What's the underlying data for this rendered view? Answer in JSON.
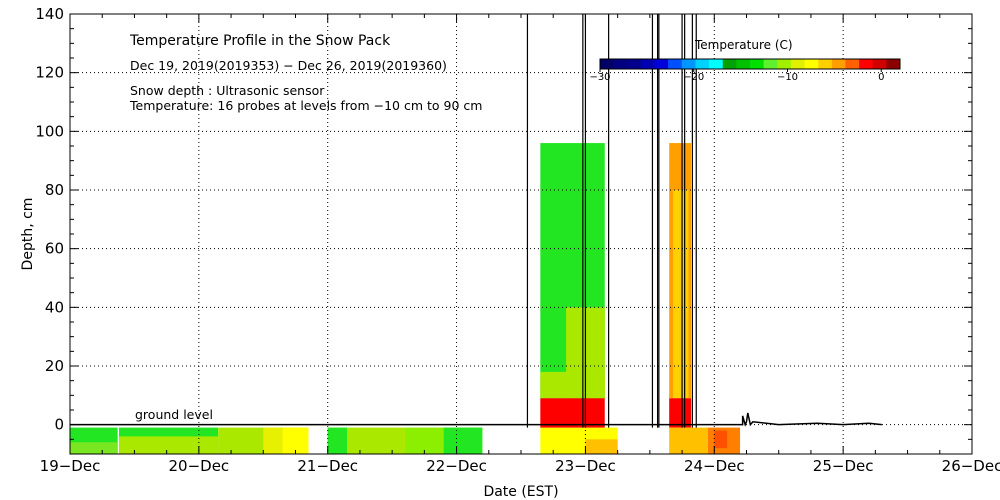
{
  "chart_data": {
    "type": "heatmap",
    "title": "Temperature Profile in the Snow Pack",
    "subtitle": "Dec 19, 2019(2019353) − Dec 26, 2019(2019360)",
    "info_lines": [
      "Snow depth : Ultrasonic sensor",
      "Temperature: 16 probes at levels from −10 cm to 90 cm"
    ],
    "xlabel": "Date (EST)",
    "ylabel": "Depth, cm",
    "x_ticks": [
      "19−Dec",
      "20−Dec",
      "21−Dec",
      "22−Dec",
      "23−Dec",
      "24−Dec",
      "25−Dec",
      "26−Dec"
    ],
    "xlim_days": [
      0,
      7
    ],
    "ylim": [
      -10,
      140
    ],
    "y_ticks": [
      0,
      20,
      40,
      60,
      80,
      100,
      120,
      140
    ],
    "grid": true,
    "annotation": "ground level",
    "colorbar": {
      "title": "Temperature (C)",
      "range": [
        -30,
        2
      ],
      "tick_values": [
        -30,
        -20,
        -10,
        0
      ],
      "tick_labels": [
        "−30",
        "−20",
        "−10",
        "0"
      ],
      "colors": [
        "#000066",
        "#000080",
        "#00008c",
        "#0000b0",
        "#0000d8",
        "#0050ff",
        "#0096ff",
        "#00d2ff",
        "#00ffff",
        "#00a000",
        "#00c000",
        "#00e000",
        "#60f030",
        "#a0f000",
        "#e0f000",
        "#ffff00",
        "#ffd000",
        "#ffa000",
        "#ff6000",
        "#ff0000",
        "#d00000",
        "#8c0000"
      ]
    },
    "patches": [
      {
        "x0": 0.0,
        "x1": 0.37,
        "y0": -10,
        "y1": -1,
        "color": "#22e622"
      },
      {
        "x0": 0.0,
        "x1": 0.37,
        "y0": -10,
        "y1": -6,
        "color": "#7ae622"
      },
      {
        "x0": 0.38,
        "x1": 1.15,
        "y0": -10,
        "y1": -1,
        "color": "#22e622"
      },
      {
        "x0": 0.38,
        "x1": 1.15,
        "y0": -10,
        "y1": -4,
        "color": "#aae800"
      },
      {
        "x0": 1.15,
        "x1": 1.85,
        "y0": -10,
        "y1": -1,
        "color": "#aae800"
      },
      {
        "x0": 1.5,
        "x1": 1.85,
        "y0": -10,
        "y1": -1,
        "color": "#e6f000"
      },
      {
        "x0": 1.65,
        "x1": 1.85,
        "y0": -10,
        "y1": -1,
        "color": "#ffff00"
      },
      {
        "x0": 2.0,
        "x1": 2.6,
        "y0": -10,
        "y1": -1,
        "color": "#aae800"
      },
      {
        "x0": 2.0,
        "x1": 2.15,
        "y0": -10,
        "y1": -1,
        "color": "#22e622"
      },
      {
        "x0": 2.6,
        "x1": 3.2,
        "y0": -10,
        "y1": -1,
        "color": "#8cee00"
      },
      {
        "x0": 2.9,
        "x1": 3.2,
        "y0": -10,
        "y1": -1,
        "color": "#22e622"
      },
      {
        "x0": 3.65,
        "x1": 4.25,
        "y0": -10,
        "y1": -1,
        "color": "#ffff00"
      },
      {
        "x0": 4.0,
        "x1": 4.25,
        "y0": -10,
        "y1": -5,
        "color": "#ffc000"
      },
      {
        "x0": 3.65,
        "x1": 4.15,
        "y0": 9,
        "y1": 96,
        "color": "#22e622"
      },
      {
        "x0": 3.65,
        "x1": 4.15,
        "y0": 9,
        "y1": 18,
        "color": "#aae800"
      },
      {
        "x0": 3.85,
        "x1": 4.15,
        "y0": 9,
        "y1": 40,
        "color": "#aae800"
      },
      {
        "x0": 3.65,
        "x1": 4.15,
        "y0": -1,
        "y1": 9,
        "color": "#ff0000"
      },
      {
        "x0": 4.65,
        "x1": 4.82,
        "y0": 9,
        "y1": 96,
        "color": "#ffa000"
      },
      {
        "x0": 4.68,
        "x1": 4.8,
        "y0": 9,
        "y1": 80,
        "color": "#ffd000"
      },
      {
        "x0": 4.65,
        "x1": 4.82,
        "y0": -1,
        "y1": 9,
        "color": "#ff0000"
      },
      {
        "x0": 4.65,
        "x1": 4.95,
        "y0": -10,
        "y1": -1,
        "color": "#ffc000"
      },
      {
        "x0": 4.95,
        "x1": 5.2,
        "y0": -10,
        "y1": -1,
        "color": "#ff8000"
      },
      {
        "x0": 5.0,
        "x1": 5.1,
        "y0": -8,
        "y1": -2,
        "color": "#ff5000"
      }
    ],
    "snow_depth_lines": [
      {
        "x": [
          3.55,
          3.55
        ],
        "y": [
          -1,
          140
        ]
      },
      {
        "x": [
          3.98,
          3.98
        ],
        "y": [
          -1,
          140
        ]
      },
      {
        "x": [
          4.0,
          4.0
        ],
        "y": [
          -1,
          140
        ]
      },
      {
        "x": [
          4.18,
          4.18
        ],
        "y": [
          -1,
          140
        ]
      },
      {
        "x": [
          4.52,
          4.52
        ],
        "y": [
          -1,
          140
        ]
      },
      {
        "x": [
          4.56,
          4.56
        ],
        "y": [
          -1,
          140
        ]
      },
      {
        "x": [
          4.57,
          4.57
        ],
        "y": [
          -1,
          140
        ]
      },
      {
        "x": [
          4.75,
          4.75
        ],
        "y": [
          -1,
          140
        ]
      },
      {
        "x": [
          4.77,
          4.77
        ],
        "y": [
          -1,
          140
        ]
      },
      {
        "x": [
          4.83,
          4.83
        ],
        "y": [
          -1,
          140
        ]
      },
      {
        "x": [
          4.86,
          4.86
        ],
        "y": [
          -1,
          140
        ]
      }
    ],
    "baseline_trace": {
      "x": [
        0.0,
        5.2,
        5.22,
        5.22,
        5.24,
        5.25,
        5.26,
        5.28,
        5.3,
        5.5,
        5.8,
        6.0,
        6.2,
        6.3
      ],
      "y": [
        0,
        0,
        0,
        3,
        0,
        1,
        4,
        0,
        1,
        0,
        0.5,
        0,
        0.5,
        0
      ]
    }
  }
}
